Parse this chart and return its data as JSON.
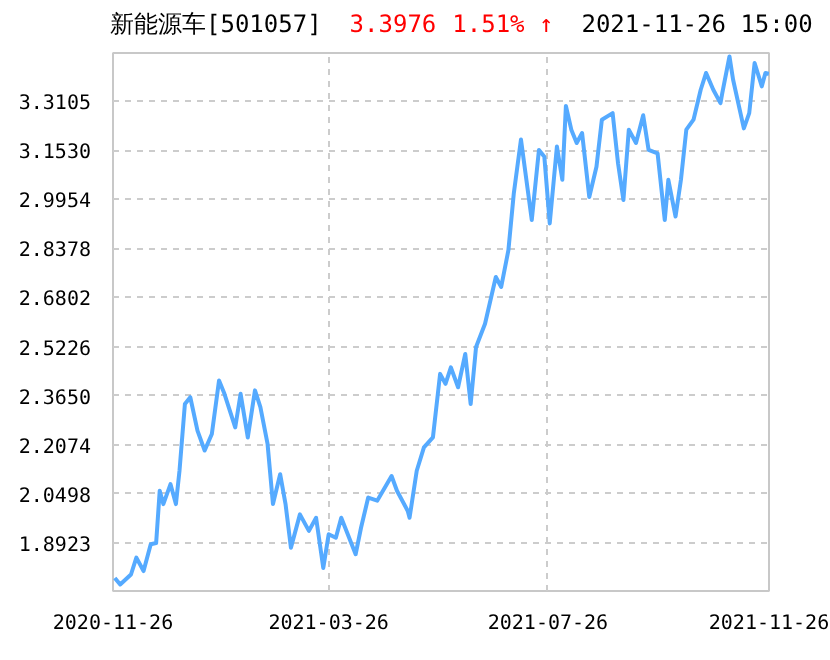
{
  "chart_data": {
    "type": "line",
    "title": "新能源车[501057]",
    "annotations": [
      "3.3976",
      "1.51% ↑",
      "2021-11-26 15:00"
    ],
    "x": [
      "2020-11-27",
      "2020-11-30",
      "2020-12-06",
      "2020-12-09",
      "2020-12-13",
      "2020-12-17",
      "2020-12-20",
      "2020-12-22",
      "2020-12-24",
      "2020-12-28",
      "2020-12-31",
      "2021-01-02",
      "2021-01-05",
      "2021-01-08",
      "2021-01-12",
      "2021-01-16",
      "2021-01-20",
      "2021-01-24",
      "2021-01-27",
      "2021-02-02",
      "2021-02-05",
      "2021-02-09",
      "2021-02-13",
      "2021-02-16",
      "2021-02-20",
      "2021-02-23",
      "2021-02-27",
      "2021-03-02",
      "2021-03-05",
      "2021-03-10",
      "2021-03-15",
      "2021-03-19",
      "2021-03-23",
      "2021-03-26",
      "2021-03-30",
      "2021-04-02",
      "2021-04-10",
      "2021-04-13",
      "2021-04-17",
      "2021-04-22",
      "2021-04-30",
      "2021-05-03",
      "2021-05-09",
      "2021-05-10",
      "2021-05-14",
      "2021-05-18",
      "2021-05-23",
      "2021-05-27",
      "2021-05-30",
      "2021-06-02",
      "2021-06-06",
      "2021-06-10",
      "2021-06-13",
      "2021-06-16",
      "2021-06-21",
      "2021-06-27",
      "2021-06-30",
      "2021-07-04",
      "2021-07-07",
      "2021-07-11",
      "2021-07-14",
      "2021-07-17",
      "2021-07-21",
      "2021-07-24",
      "2021-07-27",
      "2021-07-31",
      "2021-08-03",
      "2021-08-05",
      "2021-08-08",
      "2021-08-11",
      "2021-08-14",
      "2021-08-18",
      "2021-08-22",
      "2021-08-25",
      "2021-08-31",
      "2021-09-03",
      "2021-09-06",
      "2021-09-09",
      "2021-09-13",
      "2021-09-17",
      "2021-09-20",
      "2021-09-25",
      "2021-09-29",
      "2021-10-01",
      "2021-10-05",
      "2021-10-08",
      "2021-10-11",
      "2021-10-15",
      "2021-10-19",
      "2021-10-22",
      "2021-10-26",
      "2021-10-30",
      "2021-10-31",
      "2021-11-04",
      "2021-11-06",
      "2021-11-12",
      "2021-11-15",
      "2021-11-18",
      "2021-11-22",
      "2021-11-24",
      "2021-11-26"
    ],
    "series": [
      {
        "color": "#55aaff",
        "values": [
          1.78,
          1.759,
          1.791,
          1.845,
          1.802,
          1.888,
          1.892,
          2.06,
          2.017,
          2.081,
          2.017,
          2.124,
          2.338,
          2.36,
          2.253,
          2.189,
          2.242,
          2.414,
          2.371,
          2.263,
          2.371,
          2.231,
          2.382,
          2.328,
          2.21,
          2.017,
          2.113,
          2.017,
          1.877,
          1.984,
          1.931,
          1.973,
          1.812,
          1.92,
          1.909,
          1.973,
          1.856,
          1.941,
          2.038,
          2.028,
          2.107,
          2.06,
          1.995,
          1.973,
          2.124,
          2.199,
          2.231,
          2.435,
          2.403,
          2.456,
          2.392,
          2.499,
          2.338,
          2.521,
          2.596,
          2.746,
          2.714,
          2.832,
          3.014,
          3.187,
          3.058,
          2.929,
          3.154,
          3.132,
          2.918,
          3.165,
          3.058,
          3.295,
          3.219,
          3.176,
          3.208,
          3.003,
          3.1,
          3.251,
          3.272,
          3.111,
          2.993,
          3.219,
          3.176,
          3.265,
          3.154,
          3.143,
          2.929,
          3.058,
          2.94,
          3.058,
          3.219,
          3.251,
          3.347,
          3.401,
          3.347,
          3.304,
          3.336,
          3.454,
          3.38,
          3.223,
          3.272,
          3.433,
          3.358,
          3.401,
          3.398
        ]
      }
    ],
    "xlim": [
      "2020-11-26",
      "2021-11-26"
    ],
    "xticks": [
      "2020-11-26",
      "2021-03-26",
      "2021-07-26",
      "2021-11-26"
    ],
    "ylim": [
      1.738,
      3.465
    ],
    "yticks": [
      1.8923,
      2.0498,
      2.2074,
      {
        "value": 2.365,
        "label": "2.3650"
      },
      2.5226,
      2.6802,
      2.8378,
      2.9954,
      {
        "value": 3.153,
        "label": "3.1530"
      },
      3.3105
    ],
    "grid": true,
    "line_style": "solid"
  }
}
